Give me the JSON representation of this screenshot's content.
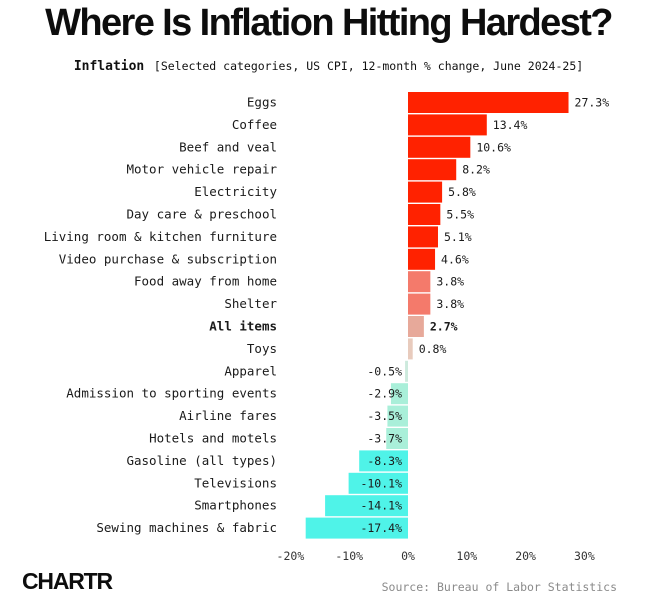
{
  "title": "Where Is Inflation Hitting Hardest?",
  "subtitle_lead": "Inflation",
  "subtitle_rest": "[Selected categories, US CPI, 12-month % change, June 2024-25]",
  "logo": "CHARTR",
  "source": "Source: Bureau of Labor Statistics",
  "colors": {
    "strong_positive": "#ff2200",
    "mid_positive": "#f47a6b",
    "all_items": "#e7a99a",
    "light_positive": "#e8cbbd",
    "small_negative": "#cdeadd",
    "moderate_negative": "#a9efd9",
    "strong_negative": "#4ff3e8"
  },
  "chart_data": {
    "type": "bar",
    "orientation": "horizontal",
    "categories": [
      "Eggs",
      "Coffee",
      "Beef and veal",
      "Motor vehicle repair",
      "Electricity",
      "Day care & preschool",
      "Living room & kitchen furniture",
      "Video purchase & subscription",
      "Food away from home",
      "Shelter",
      "All items",
      "Toys",
      "Apparel",
      "Admission to sporting events",
      "Airline fares",
      "Hotels and motels",
      "Gasoline (all types)",
      "Televisions",
      "Smartphones",
      "Sewing machines & fabric"
    ],
    "values": [
      27.3,
      13.4,
      10.6,
      8.2,
      5.8,
      5.5,
      5.1,
      4.6,
      3.8,
      3.8,
      2.7,
      0.8,
      -0.5,
      -2.9,
      -3.5,
      -3.7,
      -8.3,
      -10.1,
      -14.1,
      -17.4
    ],
    "value_labels": [
      "27.3%",
      "13.4%",
      "10.6%",
      "8.2%",
      "5.8%",
      "5.5%",
      "5.1%",
      "4.6%",
      "3.8%",
      "3.8%",
      "2.7%",
      "0.8%",
      "-0.5%",
      "-2.9%",
      "-3.5%",
      "-3.7%",
      "-8.3%",
      "-10.1%",
      "-14.1%",
      "-17.4%"
    ],
    "highlight_category": "All items",
    "xlim": [
      -20,
      30
    ],
    "xticks": [
      -20,
      -10,
      0,
      10,
      20,
      30
    ],
    "xtick_labels": [
      "-20%",
      "-10%",
      "0%",
      "10%",
      "20%",
      "30%"
    ],
    "grid": false,
    "legend": "none"
  }
}
